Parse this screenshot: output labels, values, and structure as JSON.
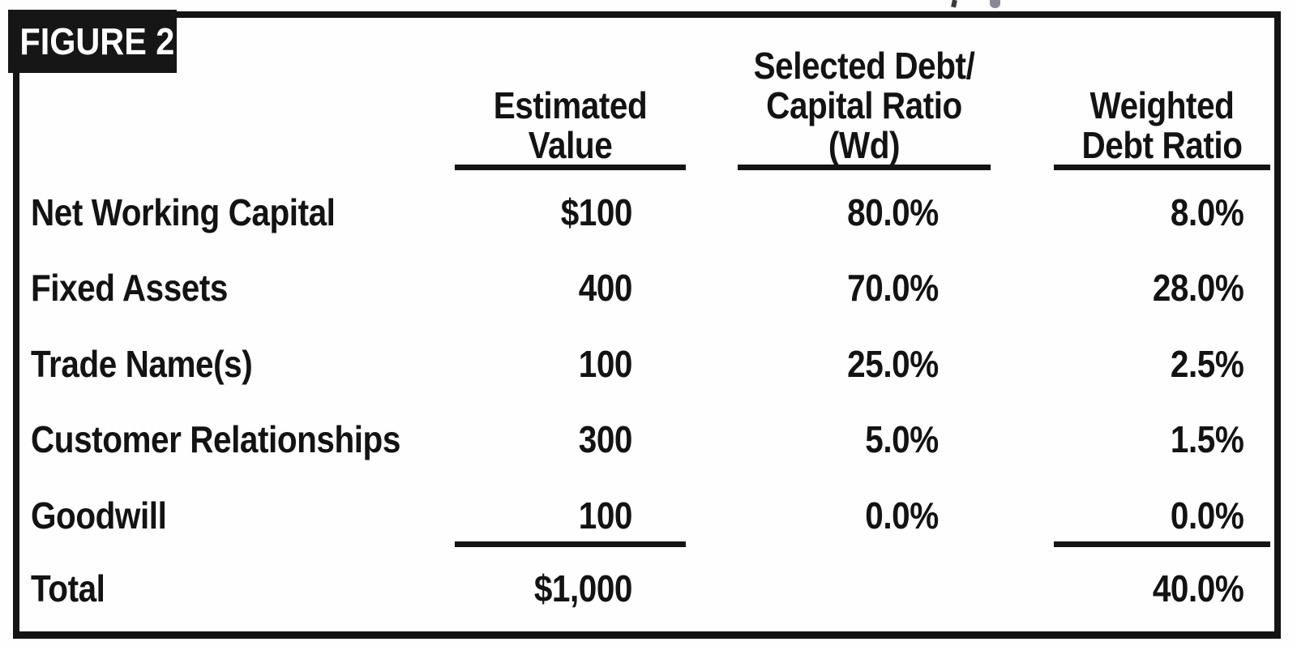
{
  "figure": {
    "label": "FIGURE 2"
  },
  "table": {
    "headers": {
      "estimated": {
        "lines": [
          "Estimated",
          "Value"
        ]
      },
      "wd": {
        "lines": [
          "Selected Debt/",
          "Capital Ratio",
          "(Wd)"
        ]
      },
      "weighted": {
        "lines": [
          "Weighted",
          "Debt Ratio"
        ]
      }
    },
    "rows": [
      {
        "label": "Net Working Capital",
        "estimated_value": "$100",
        "debt_capital_ratio": "80.0%",
        "weighted_debt_ratio": "8.0%"
      },
      {
        "label": "Fixed Assets",
        "estimated_value": "400",
        "debt_capital_ratio": "70.0%",
        "weighted_debt_ratio": "28.0%"
      },
      {
        "label": "Trade Name(s)",
        "estimated_value": "100",
        "debt_capital_ratio": "25.0%",
        "weighted_debt_ratio": "2.5%"
      },
      {
        "label": "Customer Relationships",
        "estimated_value": "300",
        "debt_capital_ratio": "5.0%",
        "weighted_debt_ratio": "1.5%"
      },
      {
        "label": "Goodwill",
        "estimated_value": "100",
        "debt_capital_ratio": "0.0%",
        "weighted_debt_ratio": "0.0%"
      }
    ],
    "total": {
      "label": "Total",
      "estimated_value": "$1,000",
      "weighted_debt_ratio": "40.0%"
    }
  },
  "colors": {
    "ink": "#141414",
    "label_background": "#161616",
    "label_text": "#ffffff",
    "page_background": "#fefefe"
  },
  "chart_data": {
    "type": "table",
    "title": "FIGURE 2",
    "columns": [
      "",
      "Estimated Value",
      "Selected Debt/Capital Ratio (Wd)",
      "Weighted Debt Ratio"
    ],
    "rows": [
      [
        "Net Working Capital",
        "$100",
        "80.0%",
        "8.0%"
      ],
      [
        "Fixed Assets",
        "400",
        "70.0%",
        "28.0%"
      ],
      [
        "Trade Name(s)",
        "100",
        "25.0%",
        "2.5%"
      ],
      [
        "Customer Relationships",
        "300",
        "5.0%",
        "1.5%"
      ],
      [
        "Goodwill",
        "100",
        "0.0%",
        "0.0%"
      ],
      [
        "Total",
        "$1,000",
        "",
        "40.0%"
      ]
    ]
  }
}
